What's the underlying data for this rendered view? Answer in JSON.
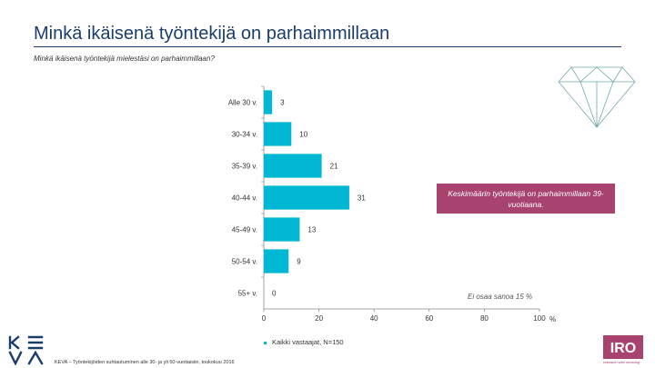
{
  "header": {
    "title": "Minkä ikäisenä työntekijä on parhaimmillaan",
    "subtitle": "Minkä ikäisenä työntekijä mielestäsi on parhaimmillaan?"
  },
  "callout": {
    "text": "Keskimäärin työntekijä on parhaimmillaan 39-vuotiaana."
  },
  "note": {
    "text": "Ei osaa sanoa 15 %"
  },
  "legend": {
    "label": "Kaikki vastaajat, N=150"
  },
  "footer": {
    "text": "KEVA – Työntekijöiden suhtautuminen alle 30- ja yli 50-vuotiaisiin, toukokuu 2016"
  },
  "logos": {
    "left": "KEVA",
    "right": "IRO",
    "right_tagline": "research with meaning"
  },
  "colors": {
    "bar": "#00b7d4",
    "title": "#1a3d6b",
    "callout": "#a8426f",
    "diamond": "#6fa8ae"
  },
  "chart_data": {
    "type": "bar",
    "orientation": "horizontal",
    "categories": [
      "Alle 30 v.",
      "30-34 v.",
      "35-39 v.",
      "40-44 v.",
      "45-49 v.",
      "50-54 v.",
      "55+ v."
    ],
    "values": [
      3,
      10,
      21,
      31,
      13,
      9,
      0
    ],
    "xlim": [
      0,
      100
    ],
    "x_ticks": [
      "0",
      "20",
      "40",
      "60",
      "80",
      "100"
    ],
    "x_unit": "%",
    "grid": false,
    "legend_position": "bottom"
  }
}
